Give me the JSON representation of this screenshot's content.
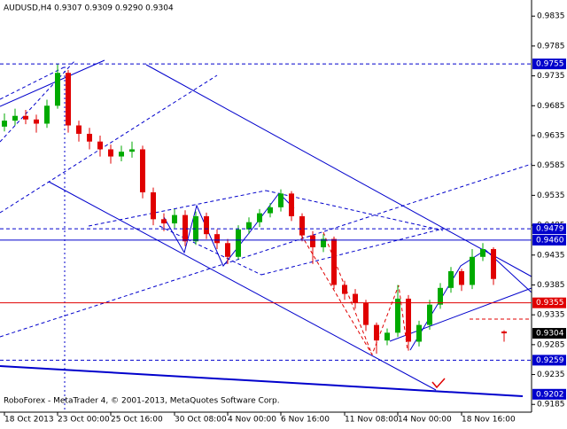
{
  "chart_data": {
    "type": "candlestick",
    "title": "AUDUSD,H4  0.9307 0.9309 0.9290 0.9304",
    "footer": "RoboForex - MetaTrader 4, © 2001-2013, MetaQuotes Software Corp.",
    "categories": [
      "18 Oct 2013",
      null,
      null,
      null,
      null,
      "23 Oct 00:00",
      null,
      null,
      null,
      null,
      "25 Oct 16:00",
      null,
      null,
      null,
      null,
      null,
      "30 Oct 08:00",
      null,
      null,
      null,
      null,
      "4 Nov 00:00",
      null,
      null,
      null,
      null,
      "6 Nov 16:00",
      null,
      null,
      null,
      null,
      null,
      "11 Nov 08:00",
      null,
      null,
      null,
      null,
      "14 Nov 00:00",
      null,
      null,
      null,
      null,
      null,
      "18 Nov 16:00",
      null,
      null,
      null,
      null
    ],
    "open": [
      0.965,
      0.966,
      0.9668,
      0.9662,
      0.9655,
      0.9685,
      0.974,
      0.9652,
      0.9638,
      0.9625,
      0.9612,
      0.96,
      0.9608,
      0.9612,
      0.954,
      0.9495,
      0.9488,
      0.9502,
      0.9458,
      0.95,
      0.947,
      0.9455,
      0.9432,
      0.9478,
      0.949,
      0.9505,
      0.9515,
      0.9538,
      0.95,
      0.9468,
      0.9448,
      0.9462,
      0.9385,
      0.937,
      0.9355,
      0.9318,
      0.9292,
      0.9305,
      0.9362,
      0.929,
      0.9318,
      0.9352,
      0.938,
      0.9408,
      0.9385,
      0.9432,
      0.9445,
      0.9307
    ],
    "high": [
      0.9672,
      0.968,
      0.9678,
      0.967,
      0.9695,
      0.9755,
      0.9745,
      0.966,
      0.9648,
      0.9635,
      0.962,
      0.9618,
      0.9625,
      0.9618,
      0.9548,
      0.9505,
      0.9512,
      0.951,
      0.9508,
      0.9506,
      0.9478,
      0.9462,
      0.9485,
      0.9498,
      0.9512,
      0.9522,
      0.9545,
      0.9542,
      0.9505,
      0.9475,
      0.947,
      0.9466,
      0.9392,
      0.9378,
      0.936,
      0.9322,
      0.9312,
      0.9385,
      0.9368,
      0.9325,
      0.936,
      0.9388,
      0.9415,
      0.9412,
      0.9445,
      0.9455,
      0.9448,
      0.9309
    ],
    "low": [
      0.9642,
      0.9652,
      0.9654,
      0.964,
      0.9648,
      0.968,
      0.964,
      0.9625,
      0.9612,
      0.96,
      0.9588,
      0.9592,
      0.9598,
      0.953,
      0.9485,
      0.9475,
      0.948,
      0.945,
      0.9452,
      0.9462,
      0.9445,
      0.942,
      0.9428,
      0.947,
      0.9482,
      0.9498,
      0.9508,
      0.9492,
      0.9458,
      0.942,
      0.944,
      0.9378,
      0.936,
      0.9345,
      0.9308,
      0.927,
      0.9284,
      0.9298,
      0.9275,
      0.9282,
      0.931,
      0.9345,
      0.9372,
      0.9375,
      0.9378,
      0.9425,
      0.9385,
      0.929
    ],
    "close": [
      0.966,
      0.9668,
      0.9662,
      0.9655,
      0.9685,
      0.974,
      0.9652,
      0.9638,
      0.9625,
      0.9612,
      0.96,
      0.9608,
      0.9612,
      0.954,
      0.9495,
      0.9488,
      0.9502,
      0.9458,
      0.95,
      0.947,
      0.9455,
      0.9432,
      0.9478,
      0.949,
      0.9505,
      0.9515,
      0.9538,
      0.95,
      0.9468,
      0.9448,
      0.9462,
      0.9385,
      0.937,
      0.9355,
      0.9318,
      0.9292,
      0.9305,
      0.9362,
      0.929,
      0.9318,
      0.9352,
      0.938,
      0.9408,
      0.9385,
      0.9432,
      0.9445,
      0.9395,
      0.9304
    ],
    "bull_color": "#00aa00",
    "bear_color": "#e00000",
    "ylim": [
      0.9172,
      0.9862
    ],
    "yticks": [
      0.9835,
      0.9785,
      0.9735,
      0.9685,
      0.9635,
      0.9585,
      0.9535,
      0.9485,
      0.9435,
      0.9385,
      0.9335,
      0.9285,
      0.9235,
      0.9185
    ],
    "levels": [
      {
        "value": 0.9755,
        "label": "0.9755",
        "color": "#0000cc",
        "style": "dashed"
      },
      {
        "value": 0.9479,
        "label": "0.9479",
        "color": "#0000cc",
        "style": "dashed"
      },
      {
        "value": 0.946,
        "label": "0.9460",
        "color": "#0000cc",
        "style": "solid"
      },
      {
        "value": 0.9355,
        "label": "0.9355",
        "color": "#e00000",
        "style": "solid"
      },
      {
        "value": 0.9304,
        "label": "0.9304",
        "color": "#000000",
        "style": "none"
      },
      {
        "value": 0.9259,
        "label": "0.9259",
        "color": "#0000cc",
        "style": "dashed"
      },
      {
        "value": 0.9202,
        "label": "0.9202",
        "color": "#0000cc",
        "style": "none"
      }
    ]
  }
}
